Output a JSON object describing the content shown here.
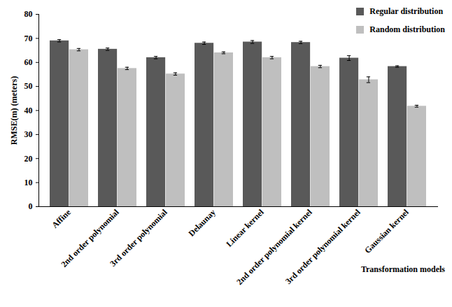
{
  "chart_data": {
    "type": "bar",
    "x_label": "Transformation models",
    "y_label": "RMSE(m) (meters)",
    "categories": [
      "Affine",
      "2nd order polynomial",
      "3rd order polynomial",
      "Delaunay",
      "Linear kernel",
      "2nd order polynomial kernel",
      "3rd order polynomial kernel",
      "Gaussian kernel"
    ],
    "series": [
      {
        "name": "Regular distribution",
        "color": "#595959",
        "values": [
          69,
          65.5,
          62,
          68,
          68.5,
          68.3,
          61.8,
          58.3
        ],
        "errors": [
          0.5,
          0.5,
          0.5,
          0.5,
          0.6,
          0.5,
          1.0,
          0.3
        ]
      },
      {
        "name": "Random distribution",
        "color": "#bfbfbf",
        "values": [
          65.3,
          57.5,
          55.2,
          64,
          62,
          58.3,
          52.8,
          41.8
        ],
        "errors": [
          0.5,
          0.5,
          0.5,
          0.4,
          0.5,
          0.5,
          1.2,
          0.4
        ]
      }
    ],
    "ylim": [
      0,
      80
    ],
    "yticks": [
      0,
      10,
      20,
      30,
      40,
      50,
      60,
      70,
      80
    ],
    "legend": "top-right"
  }
}
